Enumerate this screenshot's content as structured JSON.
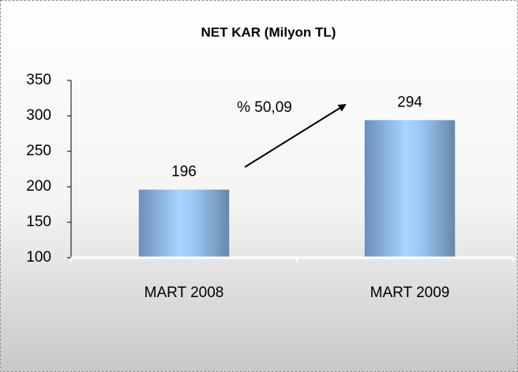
{
  "chart_data": {
    "type": "bar",
    "title": "NET KAR  (Milyon TL)",
    "categories": [
      "MART 2008",
      "MART 2009"
    ],
    "values": [
      196,
      294
    ],
    "color": "#8fbfef",
    "ylim": [
      100,
      350
    ],
    "yticks": [
      100,
      150,
      200,
      250,
      300,
      350
    ],
    "annotations": [
      "% 50,09"
    ]
  }
}
